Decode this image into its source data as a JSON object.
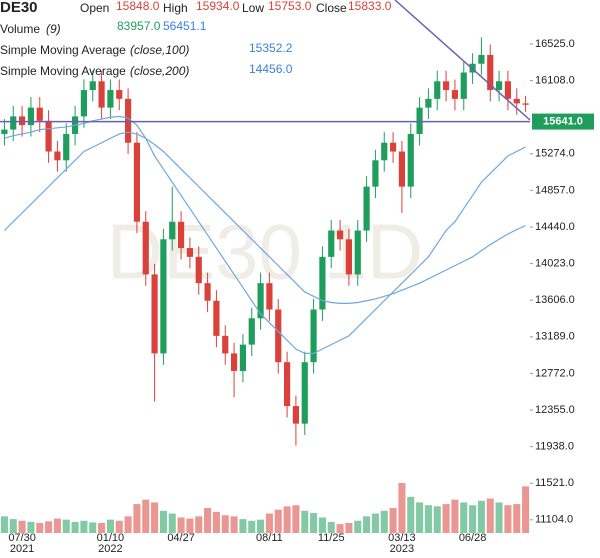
{
  "chart_data": {
    "type": "candlestick",
    "title": "DE30",
    "watermark": "DE30 1D",
    "ohlc_labels": [
      "Open",
      "High",
      "Low",
      "Close"
    ],
    "ohlc_last": [
      {
        "value": 15848,
        "label": "15848.0"
      },
      {
        "value": 15934,
        "label": "15934.0"
      },
      {
        "value": 15753,
        "label": "15753.0"
      },
      {
        "value": 15833,
        "label": "15833.0"
      }
    ],
    "categories": [
      null,
      null,
      "07/30",
      null,
      null,
      null,
      null,
      null,
      null,
      null,
      null,
      null,
      "01/10",
      null,
      null,
      null,
      null,
      null,
      null,
      null,
      "04/27",
      null,
      null,
      null,
      null,
      null,
      null,
      null,
      null,
      null,
      "08/11",
      null,
      null,
      null,
      null,
      null,
      null,
      "11/25",
      null,
      null,
      null,
      null,
      null,
      null,
      null,
      "03/13",
      null,
      null,
      null,
      null,
      null,
      null,
      null,
      "06/28",
      null,
      null,
      null,
      null,
      null,
      null
    ],
    "category_years": [
      null,
      null,
      "2021",
      null,
      null,
      null,
      null,
      null,
      null,
      null,
      null,
      null,
      "2022",
      null,
      null,
      null,
      null,
      null,
      null,
      null,
      null,
      null,
      null,
      null,
      null,
      null,
      null,
      null,
      null,
      null,
      null,
      null,
      null,
      null,
      null,
      null,
      null,
      null,
      null,
      null,
      null,
      null,
      null,
      null,
      null,
      "2023",
      null,
      null,
      null,
      null,
      null,
      null,
      null,
      null,
      null,
      null,
      null,
      null,
      null,
      null
    ],
    "open": [
      15500,
      15550,
      15700,
      15600,
      15800,
      15650,
      15300,
      15200,
      15500,
      15700,
      16000,
      16100,
      15800,
      16000,
      15900,
      15400,
      14500,
      13900,
      13000,
      14300,
      14500,
      14200,
      14100,
      13800,
      13600,
      13200,
      13000,
      12800,
      13100,
      13400,
      13800,
      13500,
      12900,
      12400,
      12200,
      12900,
      13500,
      14100,
      14400,
      14300,
      13900,
      14400,
      14900,
      15200,
      15400,
      15300,
      14900,
      15500,
      15800,
      15900,
      16100,
      16000,
      15900,
      16200,
      16300,
      16400,
      16000,
      16100,
      15900,
      15848
    ],
    "high": [
      15670,
      15820,
      15820,
      15920,
      15920,
      15770,
      15420,
      15620,
      15820,
      16120,
      16220,
      16220,
      16120,
      16120,
      16020,
      15520,
      14620,
      14020,
      14420,
      14900,
      14620,
      14320,
      14220,
      13920,
      13720,
      13320,
      13120,
      13220,
      13520,
      13920,
      13920,
      13620,
      13020,
      12520,
      13020,
      13620,
      14220,
      14520,
      14520,
      14420,
      14520,
      15020,
      15320,
      15520,
      15520,
      15420,
      15620,
      15920,
      16020,
      16220,
      16220,
      16120,
      16320,
      16420,
      16600,
      16520,
      16220,
      16220,
      16020,
      15934
    ],
    "low": [
      15370,
      15420,
      15470,
      15470,
      15520,
      15170,
      15070,
      15070,
      15370,
      15570,
      15870,
      15670,
      15670,
      15770,
      15270,
      14370,
      13770,
      12450,
      12870,
      14170,
      14070,
      13970,
      13670,
      13470,
      13070,
      12870,
      12500,
      12670,
      12970,
      13270,
      13370,
      12770,
      12270,
      11950,
      12070,
      12770,
      13370,
      13970,
      14170,
      13770,
      13770,
      14270,
      14770,
      15070,
      15170,
      14600,
      14770,
      15370,
      15670,
      15770,
      15870,
      15770,
      15770,
      16070,
      16170,
      15870,
      15870,
      15770,
      15718,
      15753
    ],
    "close": [
      15550,
      15700,
      15600,
      15800,
      15650,
      15300,
      15200,
      15500,
      15700,
      16000,
      16100,
      15800,
      16000,
      15900,
      15400,
      14500,
      13900,
      13000,
      14300,
      14500,
      14200,
      14100,
      13800,
      13600,
      13200,
      13000,
      12800,
      13100,
      13400,
      13800,
      13500,
      12900,
      12400,
      12200,
      12900,
      13500,
      14100,
      14400,
      14300,
      13900,
      14400,
      14900,
      15200,
      15400,
      15300,
      14900,
      15500,
      15800,
      15900,
      16100,
      16000,
      15900,
      16200,
      16300,
      16400,
      16000,
      16100,
      15900,
      15848,
      15833
    ],
    "up_color": "#1f9d5c",
    "down_color": "#d9413a",
    "volume": {
      "name": "Volume",
      "params": "(9)",
      "last": {
        "value": 83957,
        "label": "83957.0"
      },
      "last_color": "#1f9d5c",
      "average": 56451.1,
      "average_color": "#3d7fd9",
      "values": [
        30000,
        25000,
        22000,
        20000,
        18000,
        21000,
        26000,
        24000,
        20000,
        22000,
        19000,
        18000,
        24000,
        22000,
        30000,
        52000,
        60000,
        55000,
        40000,
        35000,
        28000,
        26000,
        30000,
        45000,
        38000,
        32000,
        30000,
        25000,
        22000,
        24000,
        35000,
        42000,
        48000,
        50000,
        40000,
        36000,
        28000,
        20000,
        16000,
        18000,
        22000,
        30000,
        35000,
        40000,
        45000,
        90000,
        65000,
        55000,
        50000,
        48000,
        52000,
        60000,
        55000,
        50000,
        58000,
        62000,
        55000,
        50000,
        52000,
        83957
      ]
    },
    "series": [
      {
        "name": "Simple Moving Average",
        "params": "(close,100)",
        "color": "#6fa8dc",
        "last": 15352.2,
        "last_color": "#3d7fd9",
        "values": [
          15450,
          15480,
          15500,
          15520,
          15550,
          15560,
          15570,
          15580,
          15600,
          15620,
          15650,
          15670,
          15690,
          15700,
          15680,
          15600,
          15450,
          15250,
          15100,
          14950,
          14800,
          14650,
          14500,
          14350,
          14200,
          14050,
          13900,
          13750,
          13600,
          13450,
          13350,
          13250,
          13150,
          13050,
          13000,
          13000,
          13050,
          13100,
          13150,
          13200,
          13300,
          13400,
          13500,
          13600,
          13700,
          13800,
          13900,
          14000,
          14100,
          14250,
          14400,
          14500,
          14650,
          14800,
          14950,
          15050,
          15150,
          15250,
          15300,
          15352.2
        ]
      },
      {
        "name": "Simple Moving Average",
        "params": "(close,200)",
        "color": "#6fa8dc",
        "last": {
          "value": 14456,
          "label": "14456.0"
        },
        "last_color": "#3d7fd9",
        "values": [
          14400,
          14500,
          14600,
          14700,
          14800,
          14900,
          15000,
          15100,
          15200,
          15300,
          15350,
          15400,
          15450,
          15500,
          15520,
          15500,
          15450,
          15380,
          15300,
          15200,
          15100,
          15000,
          14900,
          14800,
          14700,
          14600,
          14500,
          14400,
          14300,
          14200,
          14100,
          14000,
          13900,
          13800,
          13700,
          13650,
          13600,
          13580,
          13570,
          13570,
          13580,
          13600,
          13620,
          13650,
          13680,
          13720,
          13760,
          13800,
          13850,
          13900,
          13950,
          14000,
          14050,
          14100,
          14170,
          14240,
          14300,
          14360,
          14410,
          14456
        ]
      }
    ],
    "price_line": {
      "value": 15641,
      "label": "15641.0",
      "color": "#6b5fb0",
      "label_color": "#1f9d5c"
    },
    "ylim": [
      10954,
      17026
    ],
    "yticks": [
      {
        "value": 16525,
        "label": "16525.0"
      },
      {
        "value": 16108,
        "label": "16108.0"
      },
      {
        "value": 15274,
        "label": "15274.0"
      },
      {
        "value": 14857,
        "label": "14857.0"
      },
      {
        "value": 14440,
        "label": "14440.0"
      },
      {
        "value": 14023,
        "label": "14023.0"
      },
      {
        "value": 13606,
        "label": "13606.0"
      },
      {
        "value": 13189,
        "label": "13189.0"
      },
      {
        "value": 12772,
        "label": "12772.0"
      },
      {
        "value": 12355,
        "label": "12355.0"
      },
      {
        "value": 11938,
        "label": "11938.0"
      },
      {
        "value": 11521,
        "label": "11521.0"
      },
      {
        "value": 11104,
        "label": "11104.0"
      }
    ],
    "grid": false
  }
}
